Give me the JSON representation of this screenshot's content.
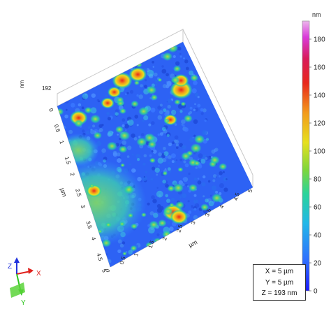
{
  "chart_data": {
    "type": "heatmap",
    "title": "",
    "surface": "3D AFM topography",
    "x_axis": {
      "label": "µm",
      "ticks": [
        "0",
        "0.5",
        "1",
        "1.5",
        "2",
        "2.5",
        "3",
        "3.5",
        "4",
        "4.5",
        "5"
      ],
      "range": [
        0,
        5
      ]
    },
    "y_axis": {
      "label": "µm",
      "ticks": [
        "0",
        "0.5",
        "1",
        "1.5",
        "2",
        "2.5",
        "3",
        "3.5",
        "4",
        "4.5",
        "5"
      ],
      "range": [
        0,
        5
      ]
    },
    "z_axis": {
      "label": "nm",
      "max_tick": "192",
      "range": [
        0,
        193
      ]
    },
    "colorbar": {
      "unit": "nm",
      "ticks": [
        "0",
        "20",
        "40",
        "60",
        "80",
        "100",
        "120",
        "140",
        "160",
        "180"
      ],
      "range": [
        0,
        193
      ],
      "colors": [
        "#1a1aff",
        "#2f6dff",
        "#22b7e8",
        "#2ad49a",
        "#7fd63a",
        "#e6e01e",
        "#f39a1c",
        "#e8281c",
        "#d81c5a",
        "#d93ad9",
        "#ecb8ec"
      ]
    },
    "scan_size": [
      "X = 5 µm",
      "Y = 5 µm",
      "Z = 193 nm"
    ],
    "orientation_axes": [
      "Z",
      "X",
      "Y"
    ]
  },
  "colors": {
    "axis_x": "#e0201c",
    "axis_y": "#2ec41e",
    "axis_z": "#2233dd"
  }
}
